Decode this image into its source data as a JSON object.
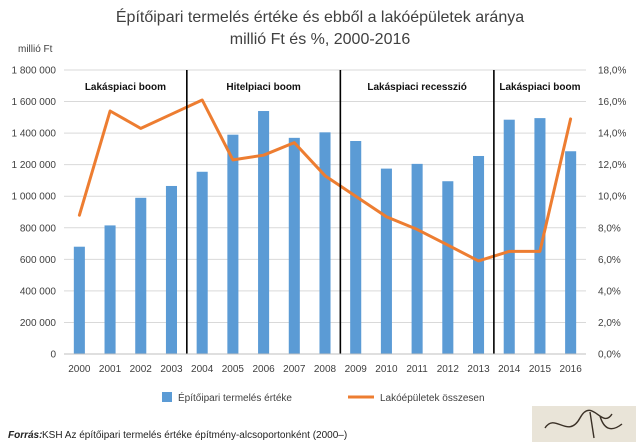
{
  "chart_data": {
    "type": "bar",
    "title_lines": [
      "Építőipari termelés értéke és ebből  a lakóépületek aránya",
      "millió Ft és %, 2000-2016"
    ],
    "y_unit_label": "millió Ft",
    "categories": [
      "2000",
      "2001",
      "2002",
      "2003",
      "2004",
      "2005",
      "2006",
      "2007",
      "2008",
      "2009",
      "2010",
      "2011",
      "2012",
      "2013",
      "2014",
      "2015",
      "2016"
    ],
    "series": [
      {
        "name": "Építőipari termelés értéke",
        "type": "bar",
        "axis": "left",
        "color": "#5b9bd5",
        "values": [
          680000,
          815000,
          990000,
          1065000,
          1155000,
          1390000,
          1540000,
          1370000,
          1405000,
          1350000,
          1175000,
          1205000,
          1095000,
          1255000,
          1485000,
          1495000,
          1285000
        ]
      },
      {
        "name": "Lakóépületek összesen",
        "type": "line",
        "axis": "right",
        "color": "#ed7d31",
        "values": [
          8.8,
          15.4,
          14.3,
          15.2,
          16.1,
          12.3,
          12.6,
          13.4,
          11.3,
          10.0,
          8.7,
          7.9,
          6.9,
          5.9,
          6.5,
          6.5,
          14.9
        ]
      }
    ],
    "y_left": {
      "min": 0,
      "max": 1800000,
      "ticks": [
        0,
        200000,
        400000,
        600000,
        800000,
        1000000,
        1200000,
        1400000,
        1600000,
        1800000
      ],
      "tick_labels": [
        "0",
        "200 000",
        "400 000",
        "600 000",
        "800 000",
        "1 000 000",
        "1 200 000",
        "1 400 000",
        "1 600 000",
        "1 800 000"
      ]
    },
    "y_right": {
      "min": 0,
      "max": 18,
      "tick_labels": [
        "0,0%",
        "2,0%",
        "4,0%",
        "6,0%",
        "8,0%",
        "10,0%",
        "12,0%",
        "14,0%",
        "16,0%",
        "18,0%"
      ]
    },
    "grid": true,
    "legend_position": "bottom",
    "periods": [
      {
        "label": "Lakáspiaci boom",
        "start": "2000",
        "end": "2003"
      },
      {
        "label": "Hitelpiaci boom",
        "start": "2004",
        "end": "2008"
      },
      {
        "label": "Lakáspiaci recesszió",
        "start": "2009",
        "end": "2013"
      },
      {
        "label": "Lakáspiaci boom",
        "start": "2014",
        "end": "2016"
      }
    ],
    "dividers_after": [
      "2003",
      "2008",
      "2013"
    ],
    "source_label": "Forrás:",
    "source_text": " KSH Az építőipari termelés értéke építmény-alcsoportonként (2000–)"
  }
}
